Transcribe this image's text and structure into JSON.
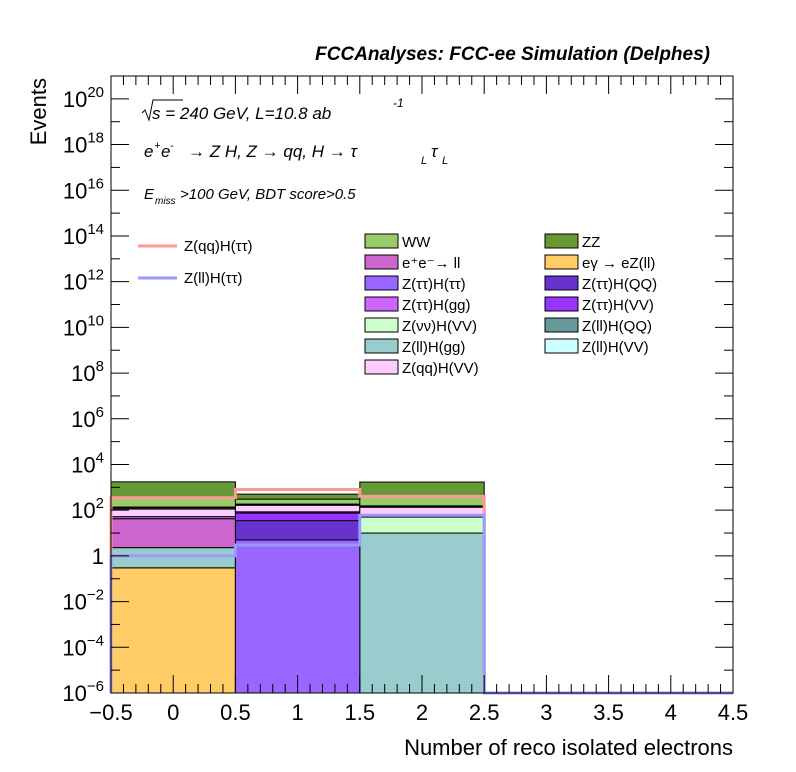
{
  "chart_data": {
    "type": "bar",
    "title": "FCCAnalyses: FCC-ee Simulation (Delphes)",
    "xlabel": "Number of reco isolated electrons",
    "ylabel": "Events",
    "xlim": [
      -0.5,
      4.5
    ],
    "ylim": [
      1e-06,
      1e+21
    ],
    "log_y": true,
    "grid": false,
    "legend_position": "top-right",
    "x_ticks": [
      "−0.5",
      "0",
      "0.5",
      "1",
      "1.5",
      "2",
      "2.5",
      "3",
      "3.5",
      "4",
      "4.5"
    ],
    "y_ticks": [
      {
        "base": "10",
        "exp": "−6"
      },
      {
        "base": "10",
        "exp": "−4"
      },
      {
        "base": "10",
        "exp": "−2"
      },
      {
        "base": "1",
        "exp": ""
      },
      {
        "base": "10",
        "exp": "2"
      },
      {
        "base": "10",
        "exp": "4"
      },
      {
        "base": "10",
        "exp": "6"
      },
      {
        "base": "10",
        "exp": "8"
      },
      {
        "base": "10",
        "exp": "10"
      },
      {
        "base": "10",
        "exp": "12"
      },
      {
        "base": "10",
        "exp": "14"
      },
      {
        "base": "10",
        "exp": "16"
      },
      {
        "base": "10",
        "exp": "18"
      },
      {
        "base": "10",
        "exp": "20"
      }
    ],
    "bin_edges": [
      -0.5,
      0.5,
      1.5,
      2.5,
      3.5,
      4.5
    ],
    "annotations": [
      "√s = 240 GeV, L=10.8 ab⁻¹",
      "e⁺e⁻ → Z H, Z → qq, H → τ_L τ_L",
      "E_miss>100 GeV, BDT score>0.5"
    ],
    "stack": [
      {
        "name": "eγ → eZ(ll)",
        "color": "#ffcc66",
        "values": [
          0.3,
          0,
          0,
          0,
          0
        ]
      },
      {
        "name": "Z(ll)H(gg)",
        "color": "#99cccc",
        "values": [
          2,
          0,
          10,
          0,
          0
        ]
      },
      {
        "name": "Z(ττ)H(ττ)",
        "color": "#9966ff",
        "values": [
          0,
          5,
          0,
          0,
          0
        ]
      },
      {
        "name": "Z(ττ)H(QQ)",
        "color": "#6633cc",
        "values": [
          0,
          30,
          0,
          0,
          0
        ]
      },
      {
        "name": "Z(νν)H(VV)",
        "color": "#ccffcc",
        "values": [
          0,
          0,
          40,
          0,
          0
        ]
      },
      {
        "name": "e⁺e⁻→ ll",
        "color": "#cc66cc",
        "values": [
          40,
          0,
          0,
          0,
          0
        ]
      },
      {
        "name": "Z(ττ)H(VV)",
        "color": "#9933ff",
        "values": [
          0,
          40,
          0,
          0,
          0
        ]
      },
      {
        "name": "Z(ττ)H(gg)",
        "color": "#cc66ff",
        "values": [
          10,
          10,
          5,
          0,
          0
        ]
      },
      {
        "name": "Z(qq)H(VV)",
        "color": "#ffccff",
        "values": [
          60,
          80,
          80,
          0,
          0
        ]
      },
      {
        "name": "Z(ll)H(QQ)",
        "color": "#669999",
        "values": [
          15,
          10,
          10,
          0,
          0
        ]
      },
      {
        "name": "Z(ll)H(VV)",
        "color": "#ccffff",
        "values": [
          10,
          10,
          10,
          0,
          0
        ]
      },
      {
        "name": "WW",
        "color": "#99cc66",
        "values": [
          200,
          120,
          250,
          0,
          0
        ]
      },
      {
        "name": "ZZ",
        "color": "#669933",
        "values": [
          1400,
          200,
          1300,
          0,
          0
        ]
      }
    ],
    "signals": [
      {
        "name": "Z(qq)H(ττ)",
        "color": "#ff9999",
        "values": [
          350,
          800,
          400,
          0,
          0
        ]
      },
      {
        "name": "Z(ll)H(ττ)",
        "color": "#9999ff",
        "values": [
          1,
          3,
          60,
          0,
          0
        ]
      }
    ],
    "legend_signals": [
      "Z(qq)H(ττ)",
      "Z(ll)H(ττ)"
    ],
    "legend_backgrounds": [
      [
        "WW",
        "ZZ"
      ],
      [
        "e⁺e⁻→ ll",
        "eγ → eZ(ll)"
      ],
      [
        "Z(ττ)H(ττ)",
        "Z(ττ)H(QQ)"
      ],
      [
        "Z(ττ)H(gg)",
        "Z(ττ)H(VV)"
      ],
      [
        "Z(νν)H(VV)",
        "Z(ll)H(QQ)"
      ],
      [
        "Z(ll)H(gg)",
        "Z(ll)H(VV)"
      ],
      [
        "Z(qq)H(VV)",
        ""
      ]
    ]
  }
}
